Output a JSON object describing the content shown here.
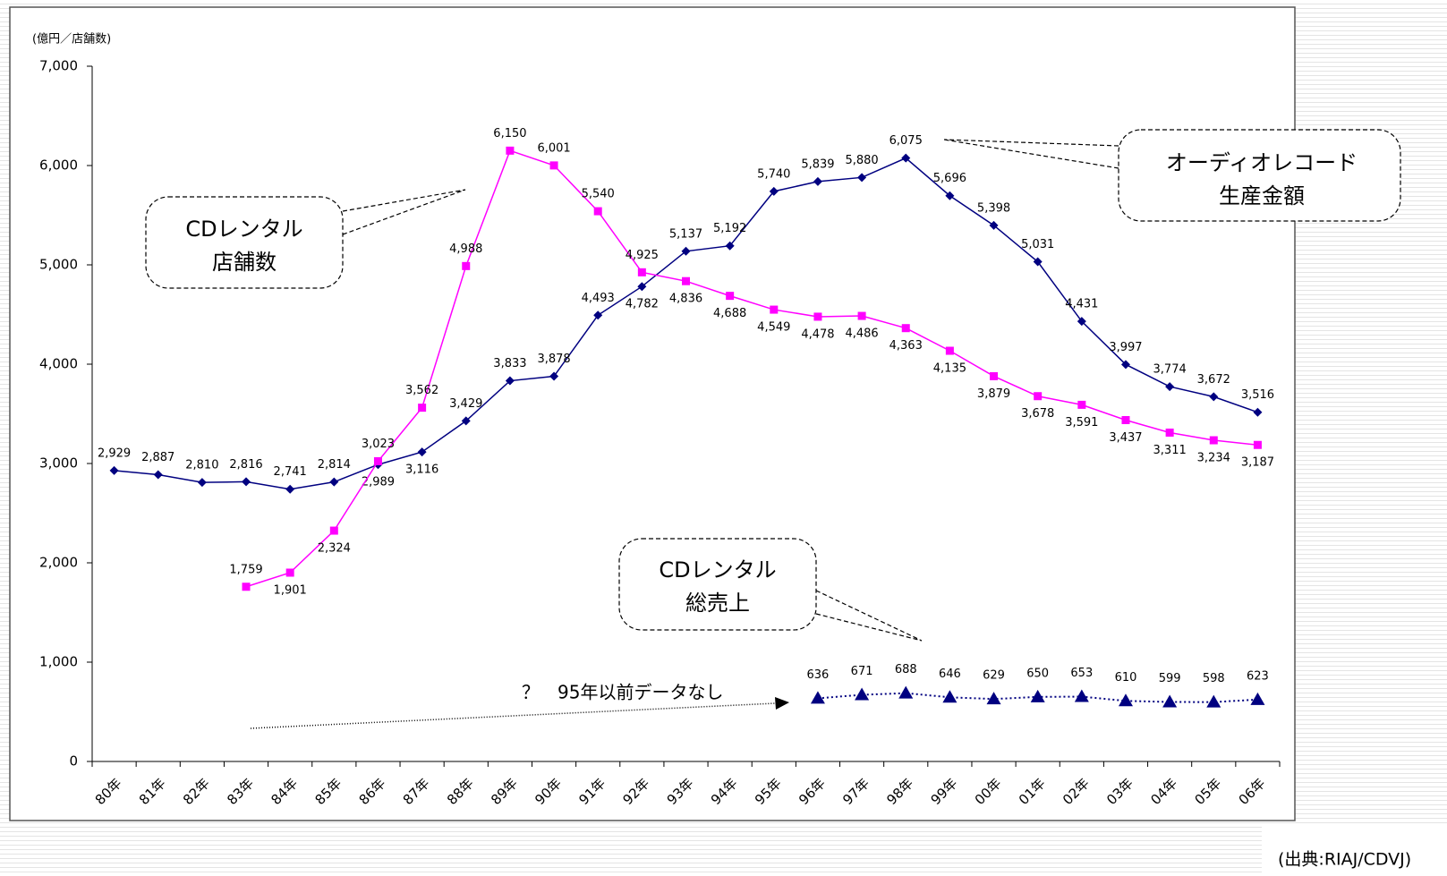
{
  "chart_data": {
    "type": "line",
    "y_unit_label": "(億円／店舗数)",
    "categories": [
      "80年",
      "81年",
      "82年",
      "83年",
      "84年",
      "85年",
      "86年",
      "87年",
      "88年",
      "89年",
      "90年",
      "91年",
      "92年",
      "93年",
      "94年",
      "95年",
      "96年",
      "97年",
      "98年",
      "99年",
      "00年",
      "01年",
      "02年",
      "03年",
      "04年",
      "05年",
      "06年"
    ],
    "ylim": [
      0,
      7000
    ],
    "yticks": [
      0,
      {
        "value": 1000,
        "label": "1,000"
      },
      {
        "value": 2000,
        "label": "2,000"
      },
      {
        "value": 3000,
        "label": "3,000"
      },
      {
        "value": 4000,
        "label": "4,000"
      },
      {
        "value": 5000,
        "label": "5,000"
      },
      {
        "value": 6000,
        "label": "6,000"
      },
      {
        "value": 7000,
        "label": "7,000"
      }
    ],
    "series": [
      {
        "name": "オーディオレコード生産金額",
        "color": "#000080",
        "marker": "diamond",
        "dash": "solid",
        "values": [
          2929,
          2887,
          2810,
          2816,
          2741,
          2814,
          2989,
          3116,
          3429,
          3833,
          3878,
          4493,
          4782,
          5137,
          5192,
          5740,
          5839,
          5880,
          6075,
          5696,
          5398,
          5031,
          4431,
          3997,
          3774,
          3672,
          3516
        ],
        "value_labels": [
          "2,929",
          "2,887",
          "2,810",
          "2,816",
          "2,741",
          "2,814",
          "2,989",
          "3,116",
          "3,429",
          "3,833",
          "3,878",
          "4,493",
          "4,782",
          "5,137",
          "5,192",
          "5,740",
          "5,839",
          "5,880",
          "6,075",
          "5,696",
          "5,398",
          "5,031",
          "4,431",
          "3,997",
          "3,774",
          "3,672",
          "3,516"
        ]
      },
      {
        "name": "CDレンタル店舗数",
        "color": "#ff00ff",
        "marker": "square",
        "dash": "solid",
        "values": [
          null,
          null,
          null,
          1759,
          1901,
          2324,
          3023,
          3562,
          4988,
          6150,
          6001,
          5540,
          4925,
          4836,
          4688,
          4549,
          4478,
          4486,
          4363,
          4135,
          3879,
          3678,
          3591,
          3437,
          3311,
          3234,
          3187
        ],
        "value_labels": [
          null,
          null,
          null,
          "1,759",
          "1,901",
          "2,324",
          "3,023",
          "3,562",
          "4,988",
          "6,150",
          "6,001",
          "5,540",
          "4,925",
          "4,836",
          "4,688",
          "4,549",
          "4,478",
          "4,486",
          "4,363",
          "4,135",
          "3,879",
          "3,678",
          "3,591",
          "3,437",
          "3,311",
          "3,234",
          "3,187"
        ]
      },
      {
        "name": "CDレンタル総売上",
        "color": "#000080",
        "marker": "triangle",
        "dash": "dotted",
        "values": [
          null,
          null,
          null,
          null,
          null,
          null,
          null,
          null,
          null,
          null,
          null,
          null,
          null,
          null,
          null,
          null,
          636,
          671,
          688,
          646,
          629,
          650,
          653,
          610,
          599,
          598,
          623
        ]
      }
    ],
    "callouts": {
      "store": [
        "CDレンタル",
        "店舗数"
      ],
      "audio": [
        "オーディオレコード",
        "生産金額"
      ],
      "sales": [
        "CDレンタル",
        "総売上"
      ]
    },
    "note": "？　95年以前データなし",
    "source": "(出典:RIAJ/CDVJ)"
  }
}
